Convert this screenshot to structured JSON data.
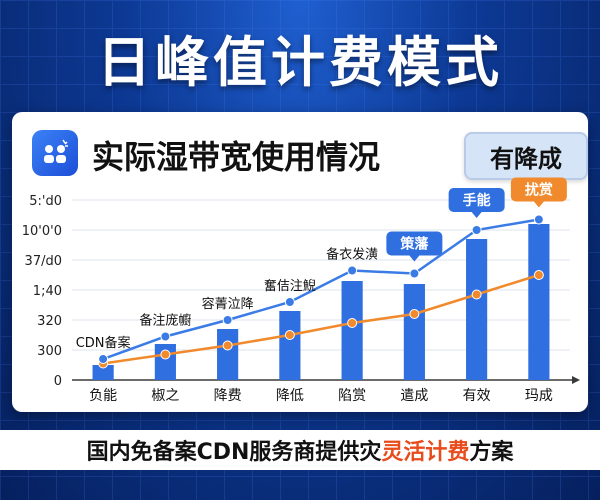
{
  "page": {
    "title": "日峰值计费模式",
    "card_title": "实际湿带宽使用情况",
    "badge": "有降成",
    "footer_prefix": "国内免备案CDN服务商提供灾",
    "footer_highlight": "灵活计费",
    "footer_suffix": "方案"
  },
  "colors": {
    "bar": "#2f6fe0",
    "line_blue": "#3b7be6",
    "line_orange": "#f08a2c",
    "highlight": "#e84c1c"
  },
  "chart_data": {
    "type": "bar",
    "categories": [
      "负能",
      "椒之",
      "降费",
      "降低",
      "陷赏",
      "遣成",
      "有效",
      "玛成"
    ],
    "y_tick_labels": [
      "0",
      "300",
      "320",
      "1;40",
      "37/d0",
      "10'0'0",
      "5:'d0"
    ],
    "series": [
      {
        "name": "",
        "type": "bar",
        "values": [
          0.5,
          1.2,
          1.7,
          2.3,
          3.3,
          3.2,
          4.7,
          5.2
        ]
      },
      {
        "name": "",
        "type": "line",
        "values": [
          0.7,
          1.45,
          2.0,
          2.6,
          3.65,
          3.55,
          5.0,
          5.35
        ]
      },
      {
        "name": "",
        "type": "line",
        "values": [
          0.55,
          0.85,
          1.15,
          1.5,
          1.9,
          2.2,
          2.85,
          3.5
        ]
      }
    ],
    "ylim": [
      0,
      6
    ],
    "annotations": [
      {
        "index": 0,
        "text": "CDN备案"
      },
      {
        "index": 1,
        "text": "备注庞幮"
      },
      {
        "index": 2,
        "text": "容菁泣降"
      },
      {
        "index": 3,
        "text": "奮佶注鯢"
      },
      {
        "index": 4,
        "text": "备衣发潢"
      },
      {
        "index": 5,
        "text": "策藩",
        "boxed": true,
        "box_color": "#2f6fe0"
      },
      {
        "index": 6,
        "text": "手能",
        "boxed": true,
        "box_color": "#2f6fe0"
      },
      {
        "index": 7,
        "text": "扰赏",
        "boxed": true,
        "box_color": "#f08a2c"
      }
    ]
  }
}
